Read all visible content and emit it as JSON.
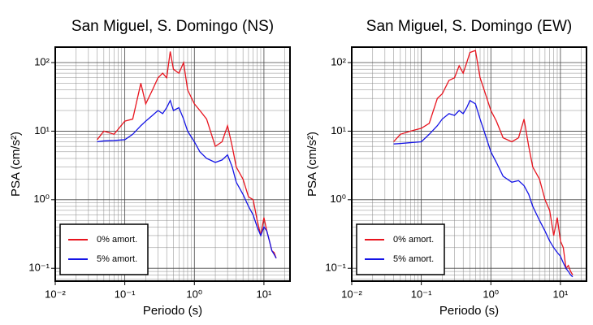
{
  "chart_data": [
    {
      "type": "line",
      "title": "San Miguel, S. Domingo (NS)",
      "x_label": "Periodo (s)",
      "y_label": "PSA (cm/s²)",
      "log_x": true,
      "log_y": true,
      "grid": true,
      "minor_grid": true,
      "legend": "lower left",
      "xlim": [
        0.01,
        23.7
      ],
      "ylim": [
        0.065,
        168
      ],
      "xticks": [
        {
          "value": 0.01,
          "label": "10⁻²"
        },
        {
          "value": 0.1,
          "label": "10⁻¹"
        },
        {
          "value": 1,
          "label": "10⁰"
        },
        {
          "value": 10,
          "label": "10¹"
        }
      ],
      "yticks": [
        {
          "value": 0.1,
          "label": "10⁻¹"
        },
        {
          "value": 1,
          "label": "10⁰"
        },
        {
          "value": 10,
          "label": "10¹"
        },
        {
          "value": 100,
          "label": "10²"
        }
      ],
      "x": [
        0.04,
        0.05,
        0.07,
        0.1,
        0.13,
        0.17,
        0.2,
        0.25,
        0.3,
        0.35,
        0.4,
        0.45,
        0.5,
        0.6,
        0.7,
        0.8,
        1.0,
        1.2,
        1.5,
        2,
        2.5,
        3,
        3.5,
        4,
        5,
        6,
        7,
        8,
        9,
        10,
        11,
        12,
        13,
        14,
        15
      ],
      "series": [
        {
          "name": "0% amort.",
          "color": "#e8141e",
          "values": [
            7.5,
            10,
            9,
            14,
            15,
            50,
            25,
            40,
            60,
            70,
            60,
            145,
            80,
            70,
            100,
            40,
            25,
            20,
            15,
            6,
            7,
            12,
            6,
            3,
            2,
            1.1,
            1.0,
            0.5,
            0.3,
            0.55,
            0.35,
            0.25,
            0.18,
            0.17,
            0.14
          ]
        },
        {
          "name": "5% amort.",
          "color": "#1414e6",
          "values": [
            7,
            7.2,
            7.3,
            7.5,
            9,
            12,
            14,
            17,
            20,
            18,
            22,
            28,
            20,
            22,
            15,
            10,
            7,
            5,
            4,
            3.5,
            3.8,
            4.5,
            3,
            1.8,
            1.2,
            0.8,
            0.6,
            0.4,
            0.3,
            0.4,
            0.35,
            0.25,
            0.18,
            0.16,
            0.14
          ]
        }
      ]
    },
    {
      "type": "line",
      "title": "San Miguel, S. Domingo (EW)",
      "x_label": "Periodo (s)",
      "y_label": "PSA (cm/s²)",
      "log_x": true,
      "log_y": true,
      "grid": true,
      "minor_grid": true,
      "legend": "lower left",
      "xlim": [
        0.01,
        23.7
      ],
      "ylim": [
        0.065,
        168
      ],
      "xticks": [
        {
          "value": 0.01,
          "label": "10⁻²"
        },
        {
          "value": 0.1,
          "label": "10⁻¹"
        },
        {
          "value": 1,
          "label": "10⁰"
        },
        {
          "value": 10,
          "label": "10¹"
        }
      ],
      "yticks": [
        {
          "value": 0.1,
          "label": "10⁻¹"
        },
        {
          "value": 1,
          "label": "10⁰"
        },
        {
          "value": 10,
          "label": "10¹"
        },
        {
          "value": 100,
          "label": "10²"
        }
      ],
      "x": [
        0.04,
        0.05,
        0.07,
        0.1,
        0.13,
        0.17,
        0.2,
        0.25,
        0.3,
        0.35,
        0.4,
        0.45,
        0.5,
        0.6,
        0.7,
        0.8,
        1.0,
        1.2,
        1.5,
        2,
        2.5,
        3,
        3.5,
        4,
        5,
        6,
        7,
        8,
        9,
        10,
        11,
        12,
        13,
        14,
        15
      ],
      "series": [
        {
          "name": "0% amort.",
          "color": "#e8141e",
          "values": [
            7,
            9,
            10,
            11,
            13,
            30,
            35,
            55,
            60,
            90,
            70,
            100,
            140,
            150,
            60,
            40,
            20,
            14,
            8,
            7,
            8,
            15,
            6,
            3,
            2,
            1.0,
            0.7,
            0.3,
            0.55,
            0.25,
            0.2,
            0.1,
            0.11,
            0.09,
            0.08
          ]
        },
        {
          "name": "5% amort.",
          "color": "#1414e6",
          "values": [
            6.5,
            6.6,
            6.8,
            7,
            9,
            12,
            15,
            18,
            17,
            20,
            18,
            22,
            28,
            25,
            15,
            10,
            5,
            3.5,
            2.2,
            1.8,
            1.9,
            1.6,
            1.2,
            0.8,
            0.5,
            0.35,
            0.25,
            0.2,
            0.17,
            0.15,
            0.12,
            0.1,
            0.09,
            0.08,
            0.075
          ]
        }
      ]
    }
  ]
}
